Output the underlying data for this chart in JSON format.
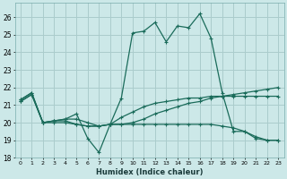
{
  "xlabel": "Humidex (Indice chaleur)",
  "bg_color": "#cce8e8",
  "grid_color": "#aacccc",
  "line_color": "#1a6b5a",
  "xlim": [
    -0.5,
    23.5
  ],
  "ylim": [
    18,
    26.8
  ],
  "yticks": [
    18,
    19,
    20,
    21,
    22,
    23,
    24,
    25,
    26
  ],
  "xticks": [
    0,
    1,
    2,
    3,
    4,
    5,
    6,
    7,
    8,
    9,
    10,
    11,
    12,
    13,
    14,
    15,
    16,
    17,
    18,
    19,
    20,
    21,
    22,
    23
  ],
  "s1_x": [
    0,
    1,
    2,
    3,
    4,
    5,
    6,
    7,
    8,
    9,
    10,
    11,
    12,
    13,
    14,
    15,
    16,
    17,
    18,
    19,
    20,
    21,
    22,
    23
  ],
  "s1_y": [
    21.3,
    21.7,
    20.0,
    20.1,
    20.2,
    20.5,
    19.1,
    18.3,
    19.9,
    21.4,
    25.1,
    25.2,
    25.7,
    24.6,
    25.5,
    25.4,
    26.2,
    24.8,
    21.7,
    19.5,
    19.5,
    19.1,
    19.0,
    19.0
  ],
  "s2_x": [
    0,
    1,
    2,
    3,
    4,
    5,
    6,
    7,
    8,
    9,
    10,
    11,
    12,
    13,
    14,
    15,
    16,
    17,
    18,
    19,
    20,
    21,
    22,
    23
  ],
  "s2_y": [
    21.3,
    21.7,
    20.0,
    20.1,
    20.2,
    20.2,
    20.0,
    19.8,
    19.9,
    19.9,
    20.0,
    20.2,
    20.5,
    20.7,
    20.9,
    21.1,
    21.2,
    21.4,
    21.5,
    21.6,
    21.7,
    21.8,
    21.9,
    22.0
  ],
  "s3_x": [
    0,
    1,
    2,
    3,
    4,
    5,
    6,
    7,
    8,
    9,
    10,
    11,
    12,
    13,
    14,
    15,
    16,
    17,
    18,
    19,
    20,
    21,
    22,
    23
  ],
  "s3_y": [
    21.2,
    21.6,
    20.0,
    20.1,
    20.1,
    19.9,
    19.8,
    19.8,
    19.9,
    19.9,
    19.9,
    19.9,
    19.9,
    19.9,
    19.9,
    19.9,
    19.9,
    19.9,
    19.8,
    19.7,
    19.5,
    19.2,
    19.0,
    19.0
  ],
  "s4_x": [
    0,
    1,
    2,
    3,
    4,
    5,
    6,
    7,
    8,
    9,
    10,
    11,
    12,
    13,
    14,
    15,
    16,
    17,
    18,
    19,
    20,
    21,
    22,
    23
  ],
  "s4_y": [
    21.2,
    21.6,
    20.0,
    20.0,
    20.0,
    19.9,
    19.8,
    19.8,
    19.9,
    20.3,
    20.6,
    20.9,
    21.1,
    21.2,
    21.3,
    21.4,
    21.4,
    21.5,
    21.5,
    21.5,
    21.5,
    21.5,
    21.5,
    21.5
  ]
}
